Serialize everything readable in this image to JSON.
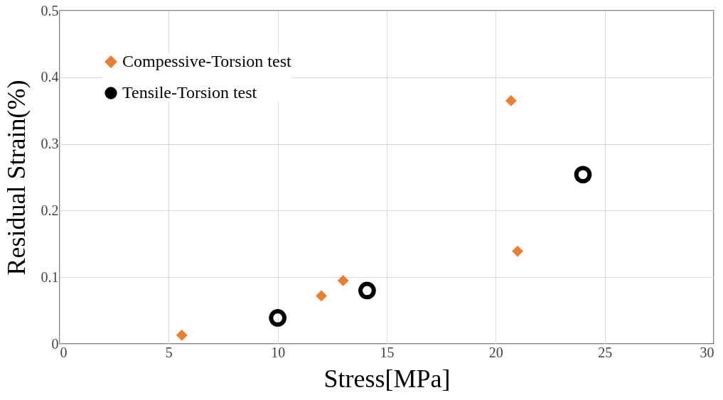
{
  "chart_data": {
    "type": "scatter",
    "xlabel": "Stress[MPa]",
    "ylabel": "Residual Strain(%)",
    "series": [
      {
        "name": "Compessive-Torsion test",
        "color": "#ed7d31",
        "marker": "diamond",
        "x": [
          5.6,
          12.0,
          13.0,
          20.7,
          21.0
        ],
        "values": [
          0.013,
          0.072,
          0.095,
          0.365,
          0.139
        ]
      },
      {
        "name": "Tensile-Torsion test",
        "color": "#000000",
        "marker": "circle",
        "x": [
          10.0,
          14.1,
          24.0
        ],
        "values": [
          0.039,
          0.08,
          0.254
        ]
      }
    ],
    "xlim": [
      0,
      30
    ],
    "xticks": [
      0,
      5,
      10,
      15,
      20,
      25,
      30
    ],
    "ylim": [
      0,
      0.5
    ],
    "yticks": [
      0,
      0.1,
      0.2,
      0.3,
      0.4,
      0.5
    ],
    "grid": true,
    "legend": "top left"
  }
}
